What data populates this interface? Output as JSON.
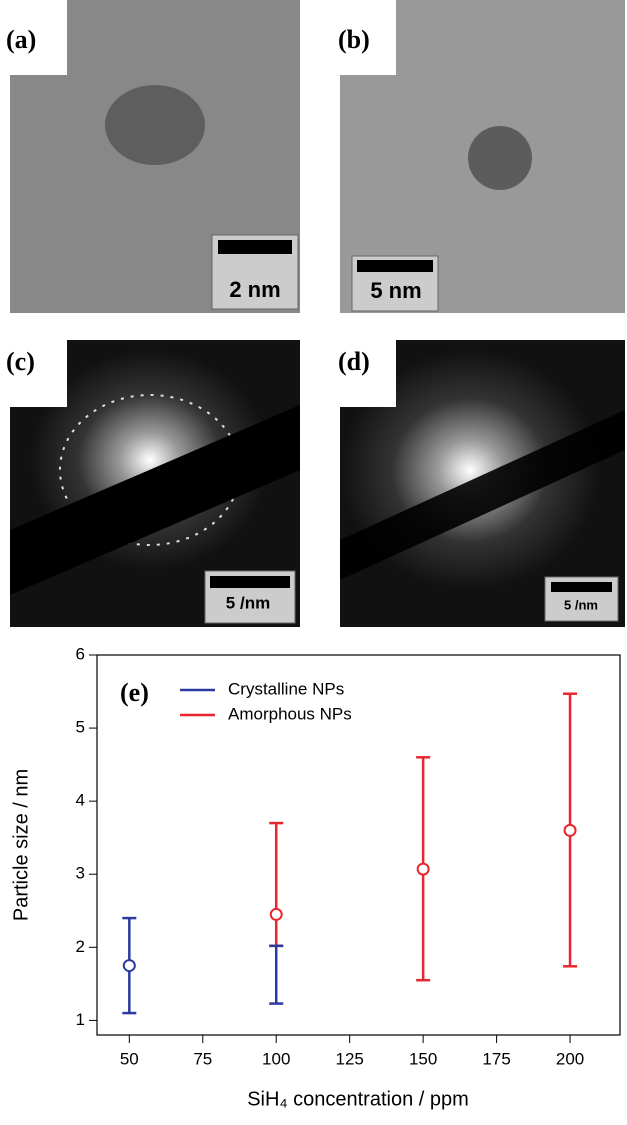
{
  "panels": [
    {
      "label": "(a)",
      "scale": "2 nm"
    },
    {
      "label": "(b)",
      "scale": "5 nm"
    },
    {
      "label": "(c)",
      "scale": "5 /nm"
    },
    {
      "label": "(d)",
      "scale": "5 /nm"
    }
  ],
  "chart_data": {
    "type": "errorbar",
    "panel_label": "(e)",
    "x_label": "SiH₄ concentration / ppm",
    "y_label": "Particle size / nm",
    "xlim": [
      39,
      217
    ],
    "xticks": [
      50,
      75,
      100,
      125,
      150,
      175,
      200
    ],
    "ylim": [
      0.8,
      6
    ],
    "yticks": [
      1,
      2,
      3,
      4,
      5,
      6
    ],
    "series": [
      {
        "name": "Crystalline NPs",
        "color": "#2b3a9e",
        "x": [
          50,
          100
        ],
        "values": [
          1.75,
          null
        ],
        "lower": [
          1.1,
          1.23
        ],
        "upper": [
          2.4,
          2.02
        ]
      },
      {
        "name": "Amorphous NPs",
        "color": "#e8262f",
        "x": [
          100,
          150,
          200
        ],
        "values": [
          2.45,
          3.07,
          3.6
        ],
        "lower": [
          2.02,
          1.55,
          1.74
        ],
        "upper": [
          3.7,
          4.6,
          5.47
        ]
      }
    ]
  }
}
